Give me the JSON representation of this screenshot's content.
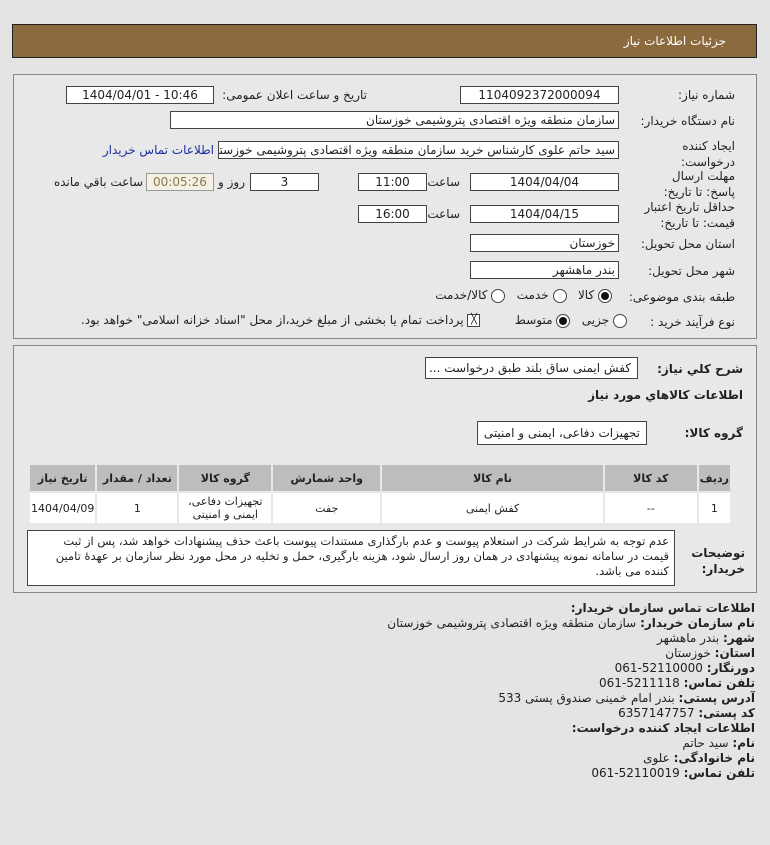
{
  "title": "جزئیات اطلاعات نیاز",
  "form": {
    "need_number_label": "شماره نیاز:",
    "need_number": "1104092372000094",
    "announce_label": "تاریخ و ساعت اعلان عمومی:",
    "announce_value": "1404/04/01 - 10:46",
    "buyer_label": "نام دستگاه خریدار:",
    "buyer_value": "سازمان منطقه ویژه اقتصادی پتروشیمی خوزستان",
    "creator_label": "ایجاد کننده درخواست:",
    "creator_value": "سید حاتم علوی کارشناس خرید سازمان منطقه ویژه اقتصادی پتروشیمی خوزستان",
    "contact_link": "اطلاعات تماس خریدار",
    "deadline_label": "مهلت ارسال پاسخ: تا تاریخ:",
    "deadline_date": "1404/04/04",
    "time_label": "ساعت",
    "deadline_time": "11:00",
    "days": "3",
    "days_label": "روز و",
    "remaining": "00:05:26",
    "remaining_label": "ساعت باقي مانده",
    "validity_label": "حداقل تاریخ اعتبار قیمت: تا تاریخ:",
    "validity_date": "1404/04/15",
    "validity_time": "16:00",
    "province_label": "استان محل تحویل:",
    "province": "خوزستان",
    "city_label": "شهر محل تحویل:",
    "city": "بندر ماهشهر",
    "category_label": "طبقه بندی موضوعی:",
    "category_options": [
      "کالا",
      "خدمت",
      "کالا/خدمت"
    ],
    "category_selected": "کالا",
    "process_label": "نوع فرآیند خرید :",
    "process_options": [
      "جزیی",
      "متوسط"
    ],
    "process_selected": "متوسط",
    "payment_note": "پرداخت تمام یا بخشی از مبلغ خرید،از محل \"اسناد خزانه اسلامی\" خواهد بود."
  },
  "needs": {
    "summary_label": "شرح كلي نياز:",
    "summary": "کفش ایمنی ساق بلند طبق درخواست ...",
    "goods_heading": "اطلاعات كالاهاي مورد نياز",
    "group_label": "گروه کالا:",
    "group": "تجهیزات دفاعی، ایمنی و امنیتی",
    "columns": [
      "ردیف",
      "کد کالا",
      "نام کالا",
      "واحد شمارش",
      "گروه کالا",
      "تعداد / مقدار",
      "تاریخ نیاز"
    ],
    "rows": [
      [
        "1",
        "--",
        "کفش ایمنی",
        "جفت",
        "تجهیزات دفاعی، ایمنی و امنیتی",
        "1",
        "1404/04/09"
      ]
    ],
    "notes_label": "توضیحات خریدار:",
    "notes": "عدم توجه به شرایط شرکت در استعلام پیوست و عدم بارگذاری مستندات پیوست باعث حذف پیشنهادات خواهد شد، پس از ثبت قیمت در سامانه نمونه پیشنهادی در همان روز ارسال شود، هزینه بارگیری، حمل و تخلیه در محل مورد نظر سازمان بر عهدهٔ تامین کننده می باشد."
  },
  "contact": {
    "heading": "اطلاعات تماس سازمان خریدار:",
    "org_label": "نام سازمان خریدار:",
    "org": "سازمان منطقه ویژه اقتصادی پتروشیمی خوزستان",
    "city_label": "شهر:",
    "city": "بندر ماهشهر",
    "province_label": "استان:",
    "province": "خوزستان",
    "fax_label": "دورنگار:",
    "fax": "52110000-061",
    "phone_label": "تلفن تماس:",
    "phone": "5211118-061",
    "address_label": "آدرس پستی:",
    "address": "بندر امام خمینی صندوق پستی 533",
    "postal_label": "کد پستی:",
    "postal": "6357147757",
    "creator_heading": "اطلاعات ایجاد کننده درخواست:",
    "name_label": "نام:",
    "name": "سید حاتم",
    "family_label": "نام خانوادگی:",
    "family": "علوی",
    "creator_phone_label": "تلفن تماس:",
    "creator_phone": "52110019-061"
  }
}
